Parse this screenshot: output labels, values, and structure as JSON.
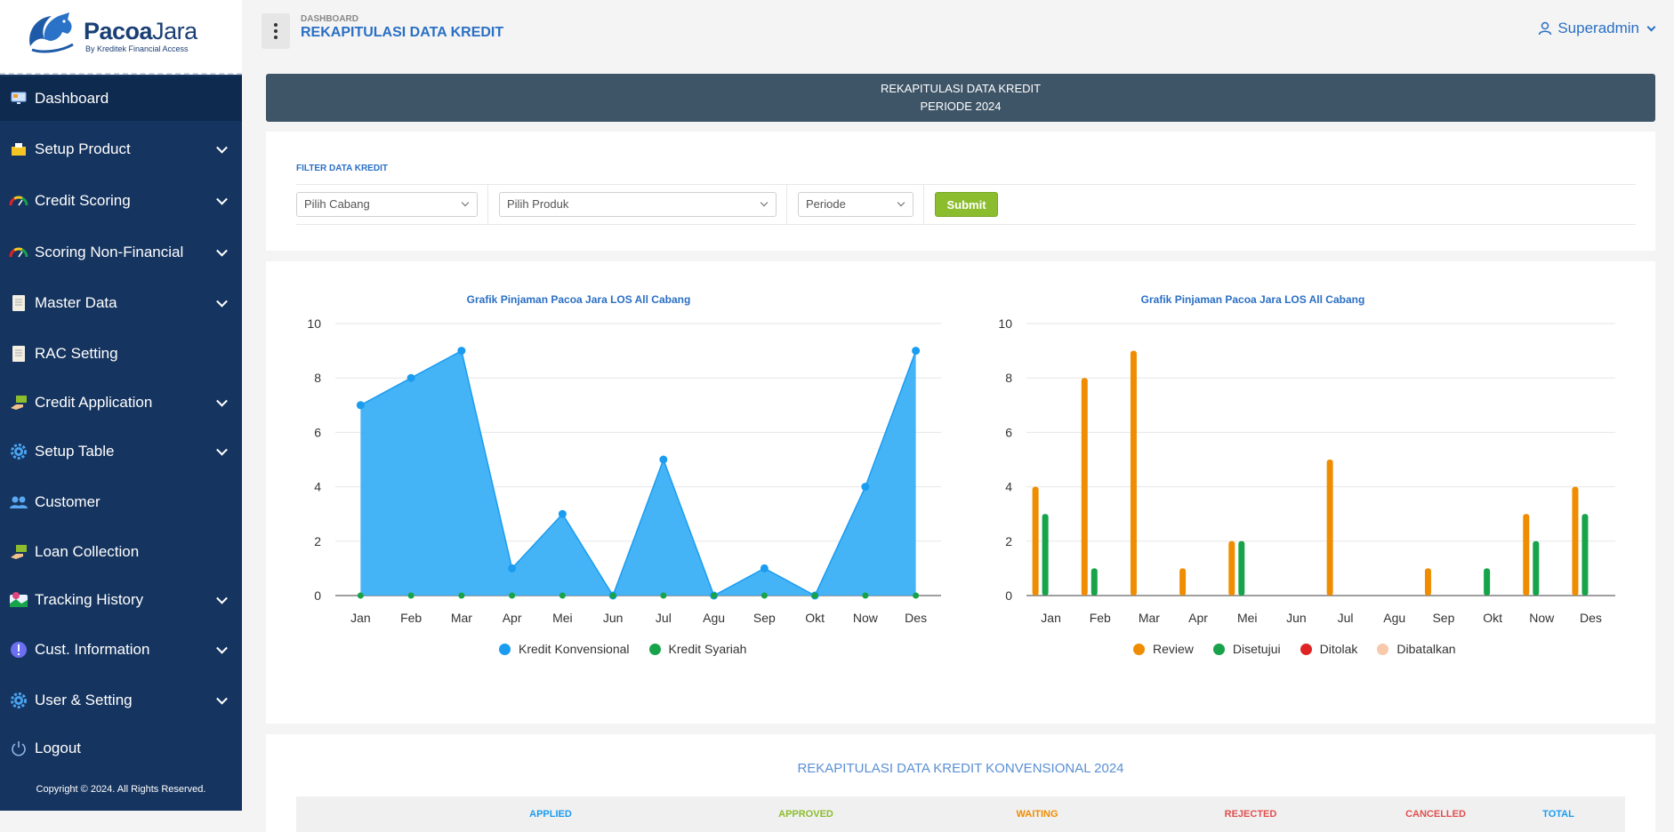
{
  "brand": {
    "name_bold": "Pacoa",
    "name_light": "Jara",
    "tagline": "By Kreditek Financial Access"
  },
  "sidebar": {
    "items": [
      {
        "label": "Dashboard",
        "icon": "monitor-icon",
        "active": true,
        "has_children": false
      },
      {
        "label": "Setup Product",
        "icon": "package-icon",
        "active": false,
        "has_children": true
      },
      {
        "label": "Credit Scoring",
        "icon": "gauge-icon",
        "active": false,
        "has_children": true
      },
      {
        "label": "Scoring Non-Financial",
        "icon": "gauge-icon",
        "active": false,
        "has_children": true
      },
      {
        "label": "Master Data",
        "icon": "document-icon",
        "active": false,
        "has_children": true
      },
      {
        "label": "RAC Setting",
        "icon": "document-icon",
        "active": false,
        "has_children": false
      },
      {
        "label": "Credit Application",
        "icon": "money-hand-icon",
        "active": false,
        "has_children": true
      },
      {
        "label": "Setup Table",
        "icon": "gear-icon",
        "active": false,
        "has_children": true
      },
      {
        "label": "Customer",
        "icon": "users-icon",
        "active": false,
        "has_children": false
      },
      {
        "label": "Loan Collection",
        "icon": "money-hand-icon",
        "active": false,
        "has_children": false
      },
      {
        "label": "Tracking History",
        "icon": "map-pin-icon",
        "active": false,
        "has_children": true
      },
      {
        "label": "Cust. Information",
        "icon": "info-icon",
        "active": false,
        "has_children": true
      },
      {
        "label": "User & Setting",
        "icon": "gear-icon",
        "active": false,
        "has_children": true
      },
      {
        "label": "Logout",
        "icon": "power-icon",
        "active": false,
        "has_children": false
      }
    ],
    "copyright": "Copyright © 2024. All Rights Reserved."
  },
  "header": {
    "breadcrumb": "DASHBOARD",
    "title": "REKAPITULASI DATA KREDIT",
    "user": "Superadmin"
  },
  "banner": {
    "line1": "REKAPITULASI DATA KREDIT",
    "line2": "PERIODE 2024"
  },
  "filter": {
    "title": "FILTER DATA KREDIT",
    "branch": "Pilih Cabang",
    "product": "Pilih Produk",
    "period": "Periode",
    "submit": "Submit"
  },
  "colors": {
    "sidebar_bg": "#15345f",
    "banner_bg": "#3e5467",
    "accent_blue": "#2a6fc4",
    "submit_green": "#8cbd2e",
    "series_konvensional": "#1a9cf0",
    "series_syariah": "#17a34a",
    "series_review": "#f08c00",
    "series_disetujui": "#17a34a",
    "series_ditolak": "#e02424",
    "series_dibatalkan": "#f8c8aa"
  },
  "chart_data": [
    {
      "type": "area",
      "title": "Grafik Pinjaman Pacoa Jara LOS All Cabang",
      "categories": [
        "Jan",
        "Feb",
        "Mar",
        "Apr",
        "Mei",
        "Jun",
        "Jul",
        "Agu",
        "Sep",
        "Okt",
        "Now",
        "Des"
      ],
      "series": [
        {
          "name": "Kredit Konvensional",
          "values": [
            7,
            8,
            9,
            1,
            3,
            0,
            5,
            0,
            1,
            0,
            4,
            9
          ]
        },
        {
          "name": "Kredit Syariah",
          "values": [
            0,
            0,
            0,
            0,
            0,
            0,
            0,
            0,
            0,
            0,
            0,
            0
          ]
        }
      ],
      "ylim": [
        0,
        10
      ],
      "yticks": [
        0,
        2,
        4,
        6,
        8,
        10
      ],
      "grid": true,
      "legend": "bottom"
    },
    {
      "type": "bar",
      "title": "Grafik Pinjaman Pacoa Jara LOS All Cabang",
      "categories": [
        "Jan",
        "Feb",
        "Mar",
        "Apr",
        "Mei",
        "Jun",
        "Jul",
        "Agu",
        "Sep",
        "Okt",
        "Now",
        "Des"
      ],
      "series": [
        {
          "name": "Review",
          "values": [
            4,
            8,
            9,
            1,
            2,
            0,
            5,
            0,
            1,
            0,
            3,
            4
          ]
        },
        {
          "name": "Disetujui",
          "values": [
            3,
            1,
            0,
            0,
            2,
            0,
            0,
            0,
            0,
            1,
            2,
            3
          ]
        },
        {
          "name": "Ditolak",
          "values": [
            0,
            0,
            0,
            0,
            0,
            0,
            0,
            0,
            0,
            0,
            0,
            0
          ]
        },
        {
          "name": "Dibatalkan",
          "values": [
            0,
            0,
            0,
            0,
            0,
            0,
            0,
            0,
            0,
            0,
            0,
            0
          ]
        }
      ],
      "ylim": [
        0,
        10
      ],
      "yticks": [
        0,
        2,
        4,
        6,
        8,
        10
      ],
      "grid": true,
      "legend": "bottom"
    }
  ],
  "table": {
    "title": "REKAPITULASI DATA KREDIT KONVENSIONAL 2024",
    "columns": [
      {
        "label": "APPLIED",
        "color": "#1a9cf0"
      },
      {
        "label": "APPROVED",
        "color": "#8cbd2e"
      },
      {
        "label": "WAITING",
        "color": "#f08c00"
      },
      {
        "label": "REJECTED",
        "color": "#e05050"
      },
      {
        "label": "CANCELLED",
        "color": "#e05050"
      },
      {
        "label": "TOTAL",
        "color": "#1a9cf0"
      }
    ]
  }
}
